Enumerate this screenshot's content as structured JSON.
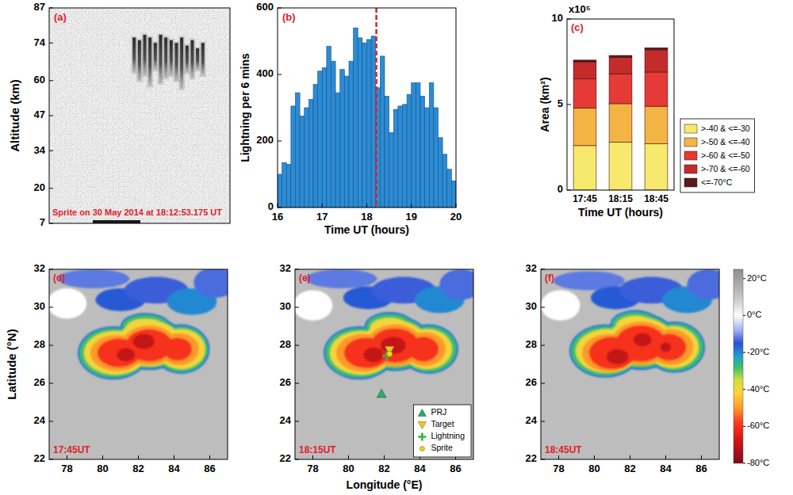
{
  "chart_data": [
    {
      "type": "image",
      "panel_label": "(a)",
      "ylabel": "Altitude (km)",
      "ylim": [
        7,
        87
      ],
      "yticks": [
        7,
        20,
        34,
        47,
        60,
        74,
        87
      ],
      "annotation": "Sprite on 30 May 2014 at 18:12:53.175 UT",
      "streak_tops": [
        76,
        75,
        77,
        76,
        74,
        77,
        76,
        75,
        74,
        76,
        73,
        75,
        72,
        74
      ],
      "streak_bottoms": [
        63,
        60,
        62,
        58,
        64,
        59,
        61,
        62,
        60,
        57,
        63,
        61,
        64,
        62
      ]
    },
    {
      "type": "histogram",
      "panel_label": "(b)",
      "xlabel": "Time UT (hours)",
      "ylabel": "Lightning per 6 mins",
      "bins": [
        16,
        16.1,
        16.2,
        16.3,
        16.4,
        16.5,
        16.6,
        16.7,
        16.8,
        16.9,
        17,
        17.1,
        17.2,
        17.3,
        17.4,
        17.5,
        17.6,
        17.7,
        17.8,
        17.9,
        18,
        18.1,
        18.2,
        18.3,
        18.4,
        18.5,
        18.6,
        18.7,
        18.8,
        18.9,
        19,
        19.1,
        19.2,
        19.3,
        19.4,
        19.5,
        19.6,
        19.7,
        19.8,
        19.9,
        20
      ],
      "counts": [
        100,
        135,
        130,
        305,
        345,
        275,
        300,
        325,
        370,
        410,
        420,
        485,
        440,
        345,
        415,
        395,
        440,
        540,
        510,
        495,
        505,
        515,
        360,
        455,
        335,
        225,
        295,
        305,
        310,
        340,
        375,
        375,
        335,
        300,
        375,
        300,
        210,
        160,
        115,
        80
      ],
      "color": "#2b8cd6",
      "xlim": [
        16,
        20
      ],
      "xticks": [
        16,
        17,
        18,
        19,
        20
      ],
      "ylim": [
        0,
        600
      ],
      "yticks": [
        0,
        200,
        400,
        600
      ],
      "marker_line": {
        "x": 18.215,
        "color": "#e0202a",
        "line_style": "dashed"
      }
    },
    {
      "type": "bar",
      "stacked": true,
      "panel_label": "(c)",
      "xlabel": "Time UT (hours)",
      "ylabel": "Area (km²)",
      "y_scale_label": "x10⁵",
      "categories": [
        "17:45",
        "18:15",
        "18:45"
      ],
      "series": [
        {
          "name": ">-40 & <=-30",
          "color": "#f6e96e",
          "values": [
            2.6,
            2.8,
            2.7
          ]
        },
        {
          "name": ">-50 & <=-40",
          "color": "#f4b444",
          "values": [
            2.2,
            2.25,
            2.2
          ]
        },
        {
          "name": ">-60 & <=-50",
          "color": "#e53a35",
          "values": [
            1.7,
            1.75,
            2.0
          ]
        },
        {
          "name": ">-70 & <=-60",
          "color": "#c42b2b",
          "values": [
            1.0,
            0.95,
            1.3
          ]
        },
        {
          "name": "<=-70°C",
          "color": "#5b1b1b",
          "values": [
            0.1,
            0.12,
            0.12
          ]
        }
      ],
      "ylim": [
        0,
        10
      ],
      "yticks": [
        0,
        5,
        10
      ],
      "legend": "right"
    },
    {
      "type": "map",
      "panel_label": "(d)",
      "time_label": "17:45UT",
      "ylabel": "Latitude (°N)",
      "xlim": [
        77,
        87
      ],
      "ylim": [
        22,
        32
      ],
      "xticks": [
        78,
        80,
        82,
        84,
        86
      ],
      "yticks": [
        22,
        24,
        26,
        28,
        30,
        32
      ],
      "background_temp": 12,
      "cells": [
        {
          "x": 78.0,
          "y": 30.2,
          "rx": 1.1,
          "ry": 0.8,
          "temp": 0
        },
        {
          "x": 79.5,
          "y": 31.5,
          "rx": 2.0,
          "ry": 0.5,
          "temp": -12
        },
        {
          "x": 81.0,
          "y": 30.4,
          "rx": 1.4,
          "ry": 0.6,
          "temp": -16
        },
        {
          "x": 83.0,
          "y": 30.9,
          "rx": 1.8,
          "ry": 0.7,
          "temp": -14
        },
        {
          "x": 85.0,
          "y": 30.3,
          "rx": 1.4,
          "ry": 0.7,
          "temp": -20
        },
        {
          "x": 86.3,
          "y": 31.3,
          "rx": 1.2,
          "ry": 0.8,
          "temp": -13
        },
        {
          "x": 80.6,
          "y": 27.6,
          "rx": 2.0,
          "ry": 1.4,
          "temp": -18
        },
        {
          "x": 82.6,
          "y": 28.1,
          "rx": 2.0,
          "ry": 1.4,
          "temp": -18
        },
        {
          "x": 84.4,
          "y": 27.8,
          "rx": 1.6,
          "ry": 1.3,
          "temp": -18
        },
        {
          "x": 82.4,
          "y": 29.0,
          "rx": 1.4,
          "ry": 0.7,
          "temp": -18
        },
        {
          "x": 80.6,
          "y": 27.6,
          "rx": 1.9,
          "ry": 1.3,
          "temp": -28
        },
        {
          "x": 82.6,
          "y": 28.1,
          "rx": 1.9,
          "ry": 1.3,
          "temp": -28
        },
        {
          "x": 84.4,
          "y": 27.8,
          "rx": 1.5,
          "ry": 1.2,
          "temp": -28
        },
        {
          "x": 82.4,
          "y": 29.0,
          "rx": 1.3,
          "ry": 0.6,
          "temp": -28
        },
        {
          "x": 80.7,
          "y": 27.6,
          "rx": 1.75,
          "ry": 1.15,
          "temp": -40
        },
        {
          "x": 82.6,
          "y": 28.1,
          "rx": 1.8,
          "ry": 1.2,
          "temp": -40
        },
        {
          "x": 84.4,
          "y": 27.8,
          "rx": 1.35,
          "ry": 1.05,
          "temp": -40
        },
        {
          "x": 82.4,
          "y": 28.9,
          "rx": 1.1,
          "ry": 0.5,
          "temp": -40
        },
        {
          "x": 80.8,
          "y": 27.6,
          "rx": 1.5,
          "ry": 0.95,
          "temp": -50
        },
        {
          "x": 82.6,
          "y": 28.0,
          "rx": 1.55,
          "ry": 1.05,
          "temp": -50
        },
        {
          "x": 84.3,
          "y": 27.8,
          "rx": 1.1,
          "ry": 0.85,
          "temp": -50
        },
        {
          "x": 80.9,
          "y": 27.6,
          "rx": 1.2,
          "ry": 0.75,
          "temp": -60
        },
        {
          "x": 82.6,
          "y": 28.0,
          "rx": 1.3,
          "ry": 0.85,
          "temp": -60
        },
        {
          "x": 84.2,
          "y": 27.8,
          "rx": 0.8,
          "ry": 0.6,
          "temp": -60
        },
        {
          "x": 81.3,
          "y": 27.5,
          "rx": 0.5,
          "ry": 0.35,
          "temp": -70
        },
        {
          "x": 82.3,
          "y": 28.2,
          "rx": 0.6,
          "ry": 0.4,
          "temp": -70
        }
      ]
    },
    {
      "type": "map",
      "panel_label": "(e)",
      "time_label": "18:15UT",
      "xlabel": "Longitude (°E)",
      "xlim": [
        77,
        87
      ],
      "ylim": [
        22,
        32
      ],
      "xticks": [
        78,
        80,
        82,
        84,
        86
      ],
      "yticks": [
        22,
        24,
        26,
        28,
        30,
        32
      ],
      "background_temp": 12,
      "cells": [
        {
          "x": 78.0,
          "y": 30.1,
          "rx": 1.1,
          "ry": 0.8,
          "temp": 0
        },
        {
          "x": 79.6,
          "y": 31.5,
          "rx": 2.0,
          "ry": 0.5,
          "temp": -12
        },
        {
          "x": 81.1,
          "y": 30.5,
          "rx": 1.4,
          "ry": 0.6,
          "temp": -16
        },
        {
          "x": 83.1,
          "y": 30.9,
          "rx": 1.8,
          "ry": 0.7,
          "temp": -14
        },
        {
          "x": 85.1,
          "y": 30.4,
          "rx": 1.4,
          "ry": 0.7,
          "temp": -20
        },
        {
          "x": 86.3,
          "y": 31.2,
          "rx": 1.2,
          "ry": 0.8,
          "temp": -13
        },
        {
          "x": 80.6,
          "y": 27.6,
          "rx": 2.0,
          "ry": 1.4,
          "temp": -18
        },
        {
          "x": 82.6,
          "y": 28.1,
          "rx": 2.05,
          "ry": 1.45,
          "temp": -18
        },
        {
          "x": 84.5,
          "y": 27.8,
          "rx": 1.65,
          "ry": 1.3,
          "temp": -18
        },
        {
          "x": 82.3,
          "y": 29.0,
          "rx": 1.4,
          "ry": 0.75,
          "temp": -18
        },
        {
          "x": 80.6,
          "y": 27.6,
          "rx": 1.9,
          "ry": 1.3,
          "temp": -28
        },
        {
          "x": 82.6,
          "y": 28.1,
          "rx": 1.95,
          "ry": 1.35,
          "temp": -28
        },
        {
          "x": 84.5,
          "y": 27.8,
          "rx": 1.55,
          "ry": 1.2,
          "temp": -28
        },
        {
          "x": 82.3,
          "y": 29.0,
          "rx": 1.3,
          "ry": 0.65,
          "temp": -28
        },
        {
          "x": 80.7,
          "y": 27.6,
          "rx": 1.75,
          "ry": 1.15,
          "temp": -40
        },
        {
          "x": 82.6,
          "y": 28.1,
          "rx": 1.8,
          "ry": 1.2,
          "temp": -40
        },
        {
          "x": 84.4,
          "y": 27.8,
          "rx": 1.4,
          "ry": 1.05,
          "temp": -40
        },
        {
          "x": 82.3,
          "y": 28.9,
          "rx": 1.1,
          "ry": 0.55,
          "temp": -40
        },
        {
          "x": 80.8,
          "y": 27.6,
          "rx": 1.5,
          "ry": 1.0,
          "temp": -50
        },
        {
          "x": 82.6,
          "y": 28.0,
          "rx": 1.6,
          "ry": 1.1,
          "temp": -50
        },
        {
          "x": 84.3,
          "y": 27.8,
          "rx": 1.15,
          "ry": 0.9,
          "temp": -50
        },
        {
          "x": 81.0,
          "y": 27.6,
          "rx": 1.25,
          "ry": 0.8,
          "temp": -60
        },
        {
          "x": 82.6,
          "y": 28.0,
          "rx": 1.35,
          "ry": 0.9,
          "temp": -60
        },
        {
          "x": 84.2,
          "y": 27.8,
          "rx": 0.85,
          "ry": 0.65,
          "temp": -60
        },
        {
          "x": 81.4,
          "y": 27.5,
          "rx": 0.55,
          "ry": 0.4,
          "temp": -70
        },
        {
          "x": 82.5,
          "y": 28.0,
          "rx": 0.7,
          "ry": 0.45,
          "temp": -70
        }
      ],
      "points": [
        {
          "name": "PRJ",
          "x": 81.85,
          "y": 25.45,
          "color": "#2eaa6a",
          "marker": "triangle"
        },
        {
          "name": "Target",
          "x": 82.3,
          "y": 27.75,
          "color": "#f2c230",
          "marker": "triangle-down"
        },
        {
          "name": "Lightning",
          "x": 82.15,
          "y": 27.45,
          "color": "#34b04a",
          "marker": "plus"
        },
        {
          "name": "Sprite",
          "x": 82.3,
          "y": 27.55,
          "color": "#f2d21e",
          "marker": "circle"
        }
      ],
      "legend": "lower right"
    },
    {
      "type": "map",
      "panel_label": "(f)",
      "time_label": "18:45UT",
      "xlim": [
        77,
        87
      ],
      "ylim": [
        22,
        32
      ],
      "xticks": [
        78,
        80,
        82,
        84,
        86
      ],
      "yticks": [
        22,
        24,
        26,
        28,
        30,
        32
      ],
      "background_temp": 12,
      "cells": [
        {
          "x": 78.1,
          "y": 30.1,
          "rx": 1.1,
          "ry": 0.8,
          "temp": 0
        },
        {
          "x": 79.7,
          "y": 31.4,
          "rx": 2.0,
          "ry": 0.5,
          "temp": -12
        },
        {
          "x": 81.2,
          "y": 30.5,
          "rx": 1.4,
          "ry": 0.6,
          "temp": -16
        },
        {
          "x": 83.2,
          "y": 30.9,
          "rx": 1.8,
          "ry": 0.7,
          "temp": -14
        },
        {
          "x": 85.2,
          "y": 30.4,
          "rx": 1.4,
          "ry": 0.7,
          "temp": -20
        },
        {
          "x": 86.4,
          "y": 31.2,
          "rx": 1.2,
          "ry": 0.8,
          "temp": -13
        },
        {
          "x": 80.6,
          "y": 27.7,
          "rx": 2.0,
          "ry": 1.4,
          "temp": -18
        },
        {
          "x": 82.6,
          "y": 28.2,
          "rx": 2.05,
          "ry": 1.5,
          "temp": -18
        },
        {
          "x": 84.5,
          "y": 27.9,
          "rx": 1.7,
          "ry": 1.35,
          "temp": -18
        },
        {
          "x": 82.3,
          "y": 29.1,
          "rx": 1.4,
          "ry": 0.75,
          "temp": -18
        },
        {
          "x": 80.6,
          "y": 27.7,
          "rx": 1.9,
          "ry": 1.3,
          "temp": -28
        },
        {
          "x": 82.6,
          "y": 28.2,
          "rx": 1.95,
          "ry": 1.4,
          "temp": -28
        },
        {
          "x": 84.5,
          "y": 27.9,
          "rx": 1.6,
          "ry": 1.25,
          "temp": -28
        },
        {
          "x": 82.3,
          "y": 29.1,
          "rx": 1.3,
          "ry": 0.65,
          "temp": -28
        },
        {
          "x": 80.7,
          "y": 27.7,
          "rx": 1.75,
          "ry": 1.15,
          "temp": -40
        },
        {
          "x": 82.6,
          "y": 28.2,
          "rx": 1.85,
          "ry": 1.25,
          "temp": -40
        },
        {
          "x": 84.4,
          "y": 27.9,
          "rx": 1.45,
          "ry": 1.1,
          "temp": -40
        },
        {
          "x": 82.3,
          "y": 29.0,
          "rx": 1.1,
          "ry": 0.55,
          "temp": -40
        },
        {
          "x": 80.8,
          "y": 27.6,
          "rx": 1.5,
          "ry": 1.0,
          "temp": -50
        },
        {
          "x": 82.6,
          "y": 28.1,
          "rx": 1.65,
          "ry": 1.15,
          "temp": -50
        },
        {
          "x": 84.3,
          "y": 27.9,
          "rx": 1.25,
          "ry": 0.95,
          "temp": -50
        },
        {
          "x": 81.0,
          "y": 27.6,
          "rx": 1.3,
          "ry": 0.85,
          "temp": -60
        },
        {
          "x": 82.6,
          "y": 28.1,
          "rx": 1.4,
          "ry": 0.95,
          "temp": -60
        },
        {
          "x": 84.2,
          "y": 27.9,
          "rx": 0.95,
          "ry": 0.7,
          "temp": -60
        },
        {
          "x": 81.3,
          "y": 27.4,
          "rx": 0.6,
          "ry": 0.4,
          "temp": -70
        },
        {
          "x": 82.7,
          "y": 28.3,
          "rx": 0.5,
          "ry": 0.35,
          "temp": -70
        },
        {
          "x": 84.0,
          "y": 27.9,
          "rx": 0.3,
          "ry": 0.25,
          "temp": -70
        }
      ],
      "colorbar": {
        "range": [
          -80,
          25
        ],
        "ticks": [
          {
            "value": 20,
            "label": "20°C"
          },
          {
            "value": 0,
            "label": "0°C"
          },
          {
            "value": -20,
            "label": "-20°C"
          },
          {
            "value": -40,
            "label": "-40°C"
          },
          {
            "value": -60,
            "label": "-60°C"
          },
          {
            "value": -80,
            "label": "-80°C"
          }
        ],
        "stops": [
          {
            "value": 25,
            "color": "#8e8e8e"
          },
          {
            "value": 10,
            "color": "#c4c4c4"
          },
          {
            "value": 0,
            "color": "#ffffff"
          },
          {
            "value": -8,
            "color": "#9fb4ef"
          },
          {
            "value": -15,
            "color": "#2a4fd6"
          },
          {
            "value": -22,
            "color": "#1f9fd0"
          },
          {
            "value": -28,
            "color": "#3cc06a"
          },
          {
            "value": -35,
            "color": "#cfe13c"
          },
          {
            "value": -42,
            "color": "#ffd23a"
          },
          {
            "value": -50,
            "color": "#ff9a2a"
          },
          {
            "value": -58,
            "color": "#ff3b1e"
          },
          {
            "value": -66,
            "color": "#e01515"
          },
          {
            "value": -80,
            "color": "#7a0a1a"
          }
        ]
      }
    }
  ]
}
